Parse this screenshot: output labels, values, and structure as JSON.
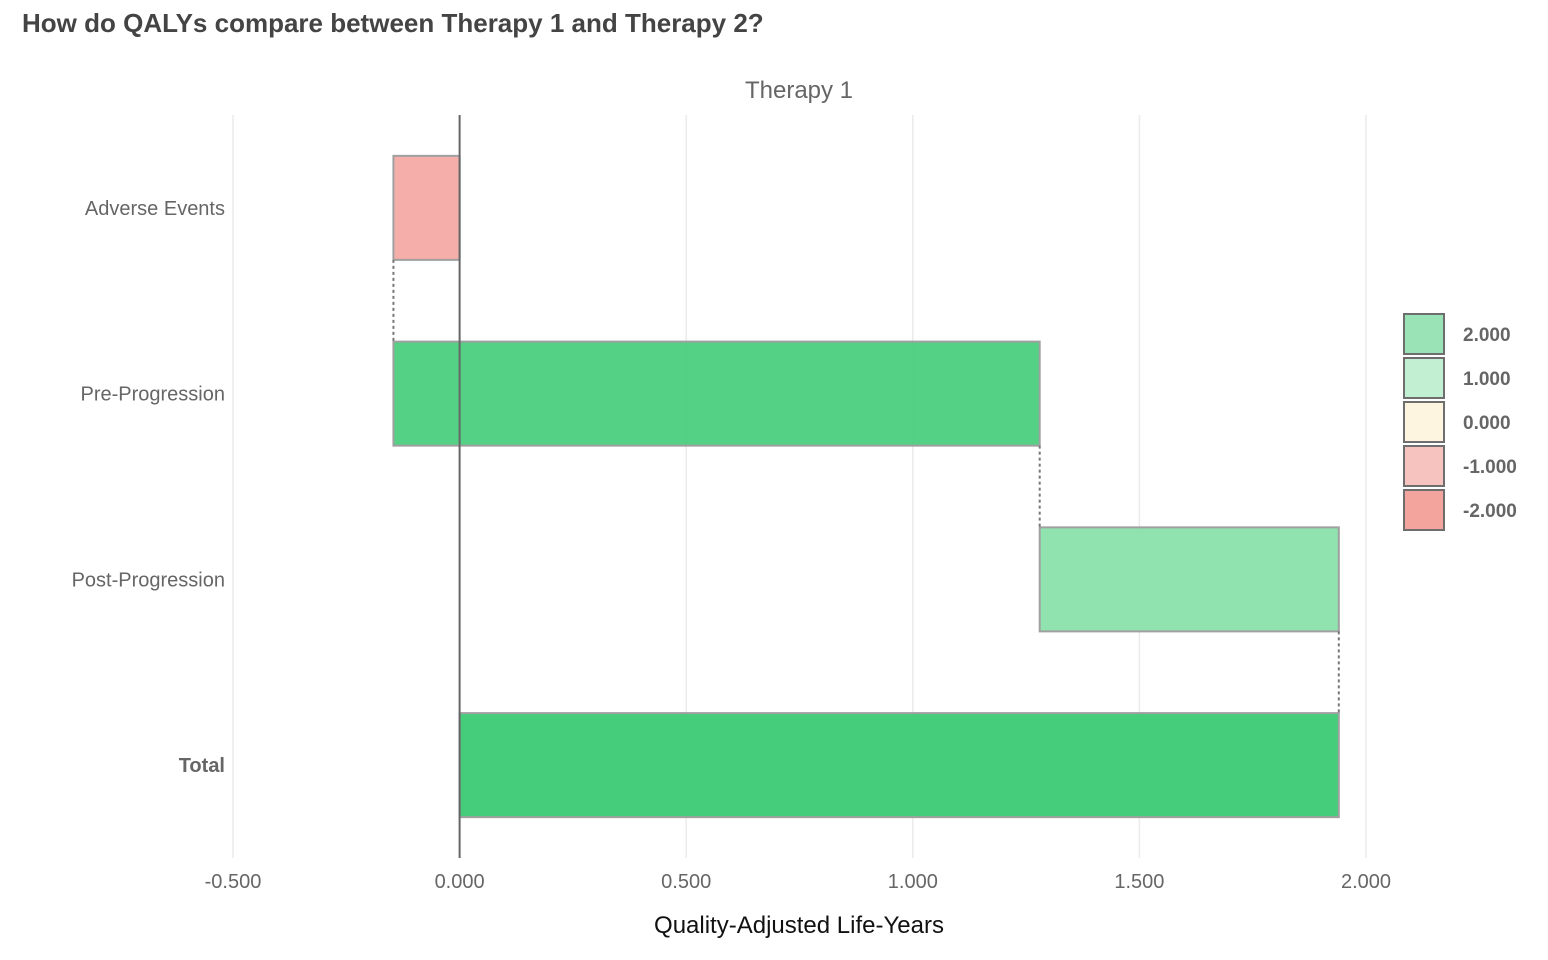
{
  "title": "How do QALYs compare between Therapy 1 and Therapy 2?",
  "chart_data": {
    "type": "bar",
    "subtype": "waterfall",
    "orientation": "horizontal",
    "facet": "Therapy 1",
    "xlabel": "Quality-Adjusted Life-Years",
    "ylabel": "",
    "xlim": [
      -0.5,
      2.0
    ],
    "xticks": [
      -0.5,
      0.0,
      0.5,
      1.0,
      1.5,
      2.0
    ],
    "xtick_labels": [
      "-0.500",
      "0.000",
      "0.500",
      "1.000",
      "1.500",
      "2.000"
    ],
    "grid": true,
    "categories": [
      {
        "label": "Adverse Events",
        "start": 0.0,
        "end": -0.146,
        "value": -0.146,
        "color": "#f4aaa4",
        "bold": false
      },
      {
        "label": "Pre-Progression",
        "start": -0.146,
        "end": 1.28,
        "value": 1.426,
        "color": "#4ccf80",
        "bold": false
      },
      {
        "label": "Post-Progression",
        "start": 1.28,
        "end": 1.94,
        "value": 0.66,
        "color": "#8ae0aa",
        "bold": false
      },
      {
        "label": "Total",
        "start": 0.0,
        "end": 1.94,
        "value": 1.94,
        "color": "#3cca74",
        "bold": true
      }
    ],
    "legend": {
      "placement": "right",
      "entries": [
        {
          "label": "2.000",
          "color": "#9ae3b6"
        },
        {
          "label": "1.000",
          "color": "#c2efd2"
        },
        {
          "label": "0.000",
          "color": "#fdf5e0"
        },
        {
          "label": "-1.000",
          "color": "#f6c3bf"
        },
        {
          "label": "-2.000",
          "color": "#f2a49d"
        }
      ]
    }
  }
}
